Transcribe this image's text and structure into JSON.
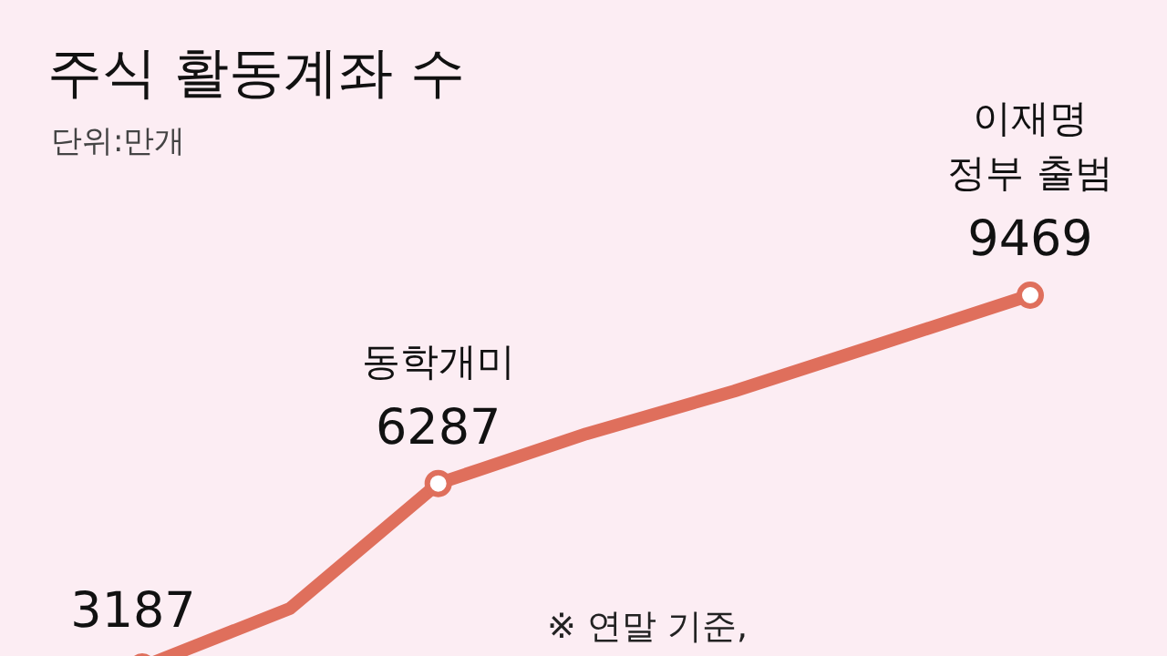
{
  "chart_data": {
    "type": "line",
    "title": "주식 활동계좌 수",
    "subtitle": "단위:만개",
    "categories": [
      null,
      null,
      null,
      null,
      null,
      null,
      null
    ],
    "series": [
      {
        "color": "#df6f5c",
        "values": [
          3187,
          4177,
          6287,
          7125,
          7848,
          8657,
          9469
        ],
        "value_labels": [
          "3187",
          null,
          "6287",
          null,
          null,
          null,
          "9469"
        ]
      }
    ],
    "annotations": [
      {
        "text": "동학개미",
        "y": 6287
      },
      {
        "text": "이재명\n정부 출범",
        "y": 9469
      },
      "※ 연말 기준,"
    ]
  }
}
